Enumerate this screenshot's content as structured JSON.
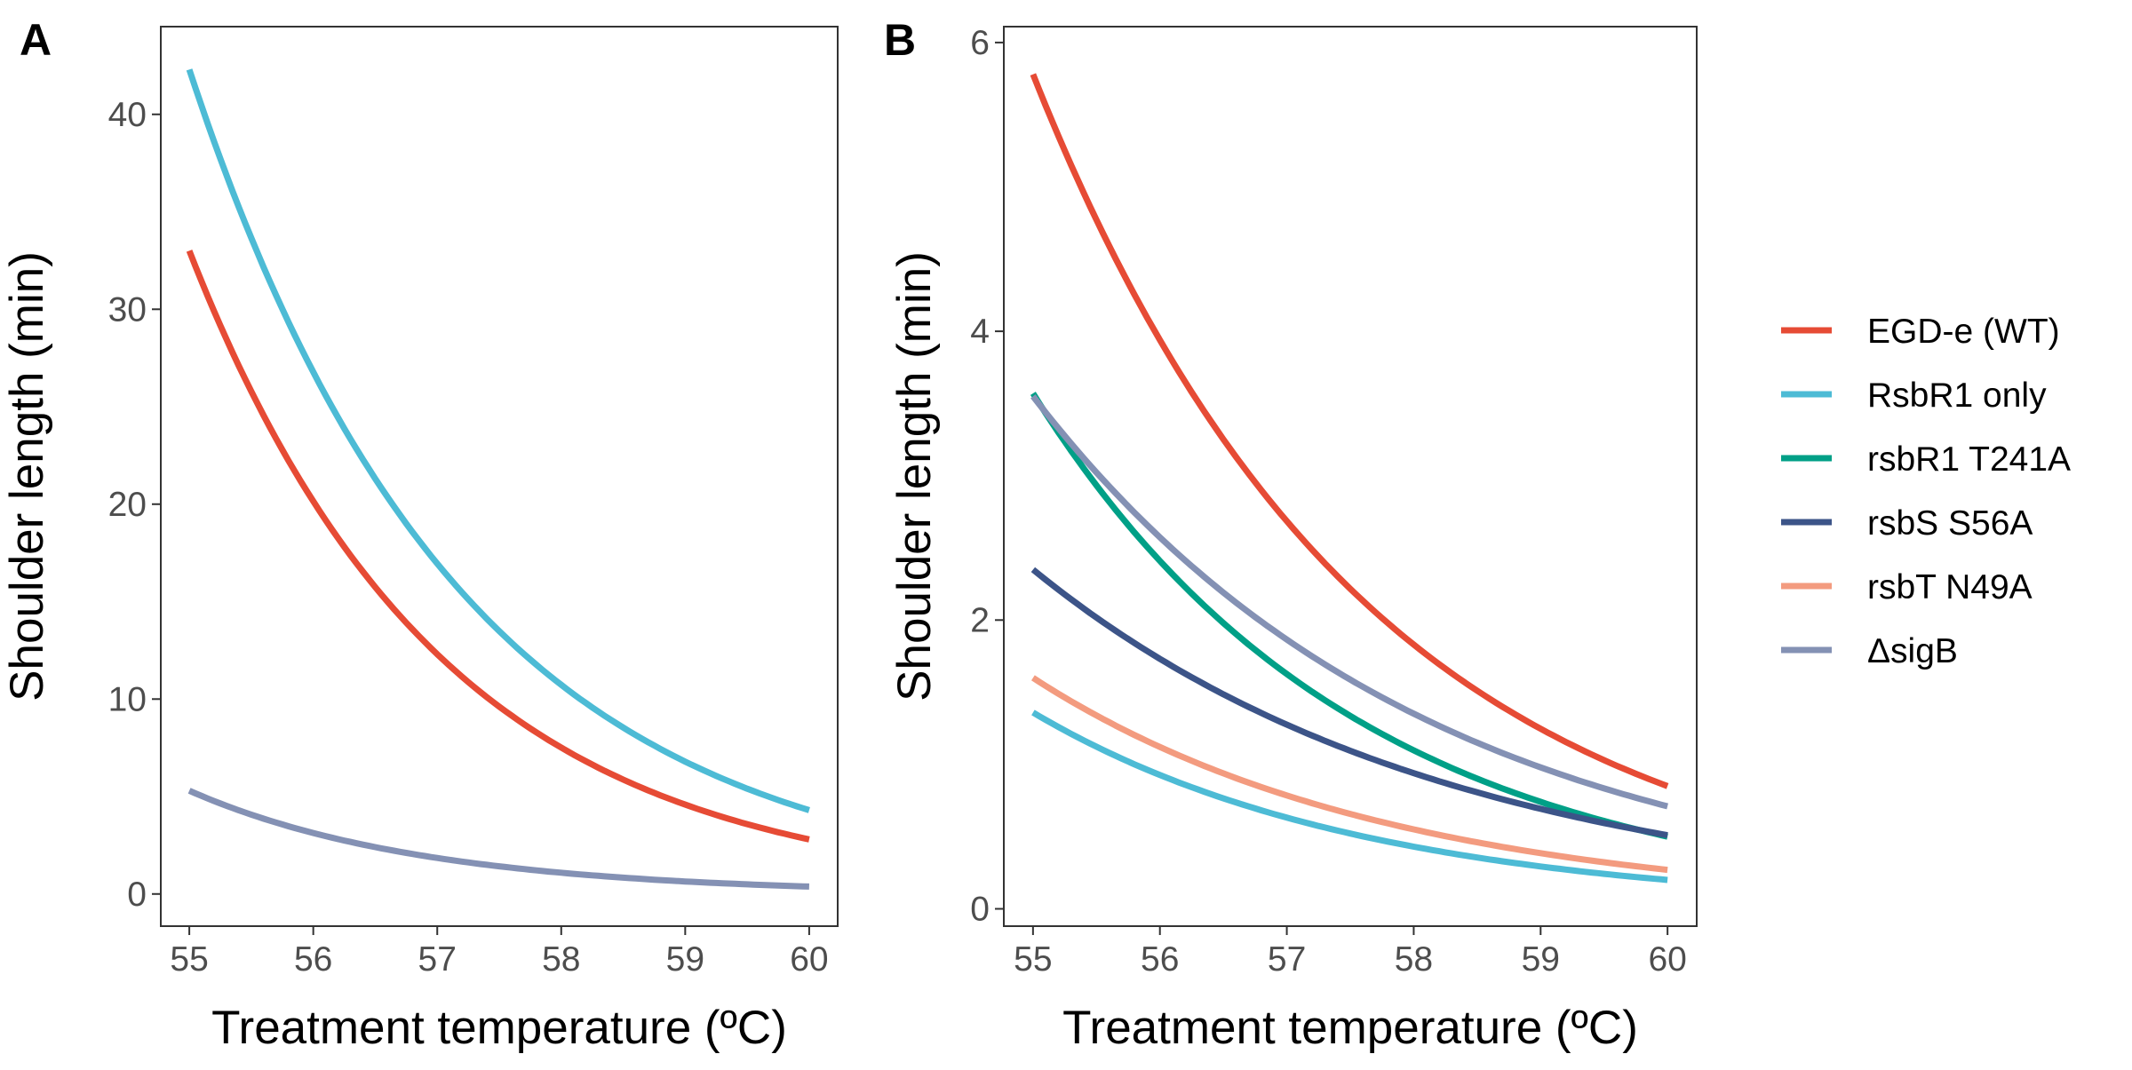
{
  "chart_data": [
    {
      "panel": "A",
      "type": "line",
      "xlabel": "Treatment temperature (ºC)",
      "ylabel": "Shoulder length (min)",
      "xlim": [
        54.77,
        60.23
      ],
      "ylim": [
        -1.65,
        44.5
      ],
      "xticks": [
        55,
        56,
        57,
        58,
        59,
        60
      ],
      "yticks": [
        0,
        10,
        20,
        30,
        40
      ],
      "grid": false,
      "series": [
        {
          "name": "EGD-e (WT)",
          "x": [
            55,
            60
          ],
          "y": [
            33.0,
            2.8
          ]
        },
        {
          "name": "RsbR1 only",
          "x": [
            55,
            60
          ],
          "y": [
            42.3,
            4.3
          ]
        },
        {
          "name": "ΔsigB",
          "x": [
            55,
            60
          ],
          "y": [
            5.3,
            0.38
          ]
        }
      ]
    },
    {
      "panel": "B",
      "type": "line",
      "xlabel": "Treatment temperature (ºC)",
      "ylabel": "Shoulder length (min)",
      "xlim": [
        54.77,
        60.23
      ],
      "ylim": [
        -0.12,
        6.11
      ],
      "xticks": [
        55,
        56,
        57,
        58,
        59,
        60
      ],
      "yticks": [
        0,
        2,
        4,
        6
      ],
      "grid": false,
      "series": [
        {
          "name": "EGD-e (WT)",
          "x": [
            55,
            60
          ],
          "y": [
            5.78,
            0.85
          ]
        },
        {
          "name": "rsbR1 T241A",
          "x": [
            55,
            60
          ],
          "y": [
            3.57,
            0.5
          ]
        },
        {
          "name": "ΔsigB",
          "x": [
            55,
            60
          ],
          "y": [
            3.55,
            0.71
          ]
        },
        {
          "name": "rsbS S56A",
          "x": [
            55,
            60
          ],
          "y": [
            2.35,
            0.51
          ]
        },
        {
          "name": "rsbT N49A",
          "x": [
            55,
            60
          ],
          "y": [
            1.6,
            0.27
          ]
        },
        {
          "name": "RsbR1 only",
          "x": [
            55,
            60
          ],
          "y": [
            1.36,
            0.2
          ]
        }
      ]
    }
  ],
  "legend": {
    "placement": "right",
    "entries": [
      {
        "label": "EGD-e (WT)",
        "color": "#E64B35"
      },
      {
        "label": "RsbR1 only",
        "color": "#4DBBD5"
      },
      {
        "label": "rsbR1 T241A",
        "color": "#00A087"
      },
      {
        "label": "rsbS S56A",
        "color": "#3C5488"
      },
      {
        "label": "rsbT N49A",
        "color": "#F39B7F"
      },
      {
        "label": "ΔsigB",
        "color": "#8491B4"
      }
    ]
  }
}
